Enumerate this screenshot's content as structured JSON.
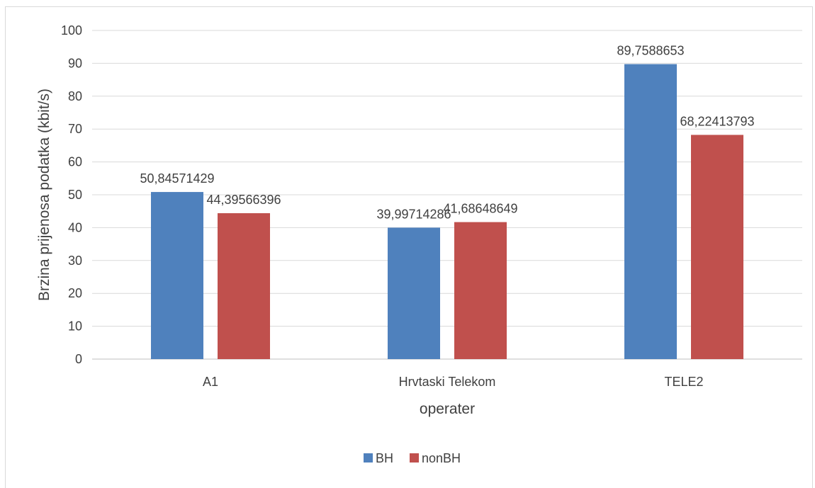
{
  "chart_data": {
    "type": "bar",
    "categories": [
      "A1",
      "Hrvtaski Telekom",
      "TELE2"
    ],
    "series": [
      {
        "name": "BH",
        "color": "#4F81BD",
        "values": [
          50.84571429,
          39.99714286,
          89.7588653
        ],
        "labels": [
          "50,84571429",
          "39,99714286",
          "89,7588653"
        ]
      },
      {
        "name": "nonBH",
        "color": "#C0504D",
        "values": [
          44.39566396,
          41.68648649,
          68.22413793
        ],
        "labels": [
          "44,39566396",
          "41,68648649",
          "68,22413793"
        ]
      }
    ],
    "xlabel": "operater",
    "ylabel": "Brzina prijenosa podatka (kbit/s)",
    "ylim": [
      0,
      100
    ],
    "yticks": [
      0,
      10,
      20,
      30,
      40,
      50,
      60,
      70,
      80,
      90,
      100
    ],
    "grid": true,
    "legend_position": "bottom"
  }
}
